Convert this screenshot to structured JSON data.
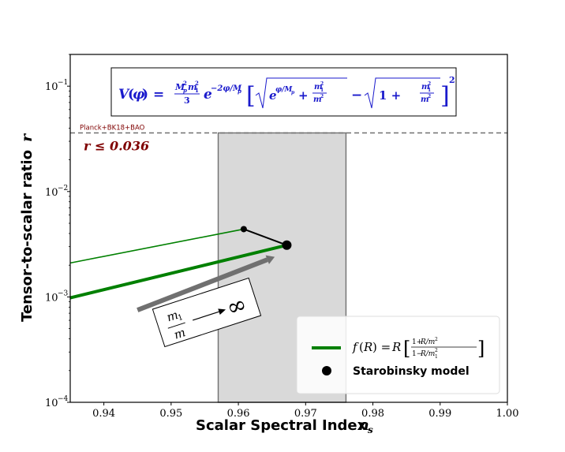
{
  "chart_data": {
    "type": "line",
    "xlabel": "Scalar Spectral Index",
    "xlabel_symbol": "n",
    "xlabel_sub": "s",
    "ylabel": "Tensor-to-scalar ratio",
    "ylabel_symbol": "r",
    "xlim": [
      0.935,
      1.0
    ],
    "ylim": [
      0.0001,
      0.2
    ],
    "yscale": "log",
    "x_ticks": [
      "0.94",
      "0.95",
      "0.96",
      "0.97",
      "0.98",
      "0.99",
      "1.00"
    ],
    "y_ticks": [
      {
        "value": 0.0001,
        "base": "10",
        "exp": "−4"
      },
      {
        "value": 0.001,
        "base": "10",
        "exp": "−3"
      },
      {
        "value": 0.01,
        "base": "10",
        "exp": "−2"
      },
      {
        "value": 0.1,
        "base": "10",
        "exp": "−1"
      }
    ],
    "shaded_band": {
      "x0": 0.957,
      "x1": 0.976,
      "color": "#d9d9d9"
    },
    "constraint": {
      "y": 0.036,
      "label": "Planck+BK18+BAO",
      "text": "r ≤ 0.036",
      "color": "#7f0000"
    },
    "series": [
      {
        "name": "f(R) = R [ (1+R/m²) / (1−R/m₁²) ]",
        "color": "#008000",
        "x": [
          0.935,
          0.9672
        ],
        "y": [
          0.00098,
          0.0031
        ]
      },
      {
        "color": "#008000",
        "x": [
          0.935,
          0.9608
        ],
        "y": [
          0.0021,
          0.0044
        ]
      },
      {
        "color": "#000000",
        "x": [
          0.9608,
          0.9672
        ],
        "y": [
          0.0044,
          0.0031
        ]
      }
    ],
    "points": [
      {
        "name": "Starobinsky model",
        "x": 0.9672,
        "y": 0.0031,
        "color": "#000000"
      },
      {
        "x": 0.9608,
        "y": 0.0044,
        "color": "#000000"
      }
    ],
    "arrow": {
      "from": [
        0.945,
        0.00075
      ],
      "to": [
        0.9654,
        0.0024
      ],
      "color": "#707070"
    },
    "annotation_arrow_text": "m₁/m ⟶ ∞",
    "formula_box_text": "V(φ) = (M_p² m₁² / 3) e^{−2φ/M_p} [ √(e^{φ/M_p} + m₁²/m²) − √(1 + m₁²/m²) ]²",
    "legend": {
      "position": "lower-right",
      "entries": [
        "f(R) = R [ (1+R/m²) / (1−R/m₁²) ]",
        "Starobinsky model"
      ]
    }
  }
}
